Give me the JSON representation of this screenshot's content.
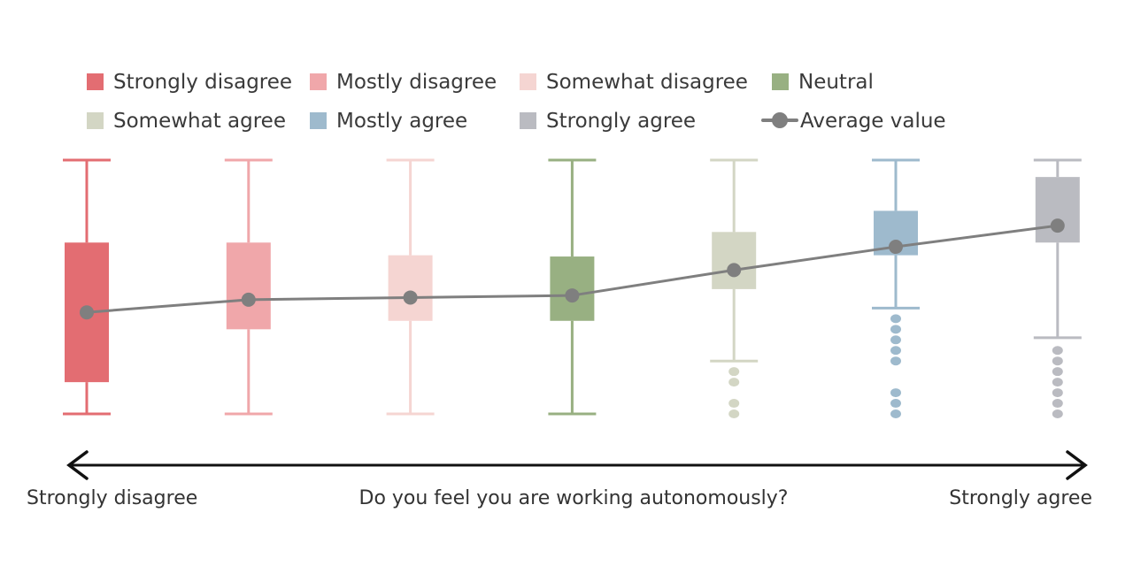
{
  "chart_data": {
    "type": "box",
    "ylim": [
      1,
      7
    ],
    "categories": [
      "Strongly disagree",
      "Mostly disagree",
      "Somewhat disagree",
      "Neutral",
      "Somewhat agree",
      "Mostly agree",
      "Strongly agree"
    ],
    "series": [
      {
        "name": "Strongly disagree",
        "color": "#e36d72",
        "whisker_low": 1,
        "q1": 1.75,
        "q3": 5.05,
        "whisker_high": 7,
        "mean": 3.4,
        "outliers": []
      },
      {
        "name": "Mostly disagree",
        "color": "#f0a7aa",
        "whisker_low": 1,
        "q1": 3.0,
        "q3": 5.05,
        "whisker_high": 7,
        "mean": 3.7,
        "outliers": []
      },
      {
        "name": "Somewhat disagree",
        "color": "#f5d5d2",
        "whisker_low": 1,
        "q1": 3.2,
        "q3": 4.75,
        "whisker_high": 7,
        "mean": 3.75,
        "outliers": []
      },
      {
        "name": "Neutral",
        "color": "#98b082",
        "whisker_low": 1,
        "q1": 3.2,
        "q3": 4.72,
        "whisker_high": 7,
        "mean": 3.8,
        "outliers": []
      },
      {
        "name": "Somewhat agree",
        "color": "#d3d6c4",
        "whisker_low": 2.25,
        "q1": 3.95,
        "q3": 5.3,
        "whisker_high": 7,
        "mean": 4.4,
        "outliers": [
          1,
          1.25,
          1.75,
          2.0
        ]
      },
      {
        "name": "Mostly agree",
        "color": "#9ebacd",
        "whisker_low": 3.5,
        "q1": 4.75,
        "q3": 5.8,
        "whisker_high": 7,
        "mean": 4.95,
        "outliers": [
          1,
          1.25,
          1.5,
          2.25,
          2.5,
          2.75,
          3.0,
          3.25
        ]
      },
      {
        "name": "Strongly agree",
        "color": "#babbc1",
        "whisker_low": 2.8,
        "q1": 5.05,
        "q3": 6.6,
        "whisker_high": 7,
        "mean": 5.45,
        "outliers": [
          1,
          1.25,
          1.5,
          1.75,
          2.0,
          2.25,
          2.5
        ]
      }
    ],
    "average_line": {
      "name": "Average value",
      "color": "#7f7f7f"
    },
    "legend": [
      "Strongly disagree",
      "Mostly disagree",
      "Somewhat disagree",
      "Neutral",
      "Somewhat agree",
      "Mostly agree",
      "Strongly agree",
      "Average value"
    ],
    "legend_placement": "top",
    "xlabel": "Do you feel you are working autonomously?",
    "axis_left_label": "Strongly disagree",
    "axis_right_label": "Strongly agree",
    "grid": false
  }
}
